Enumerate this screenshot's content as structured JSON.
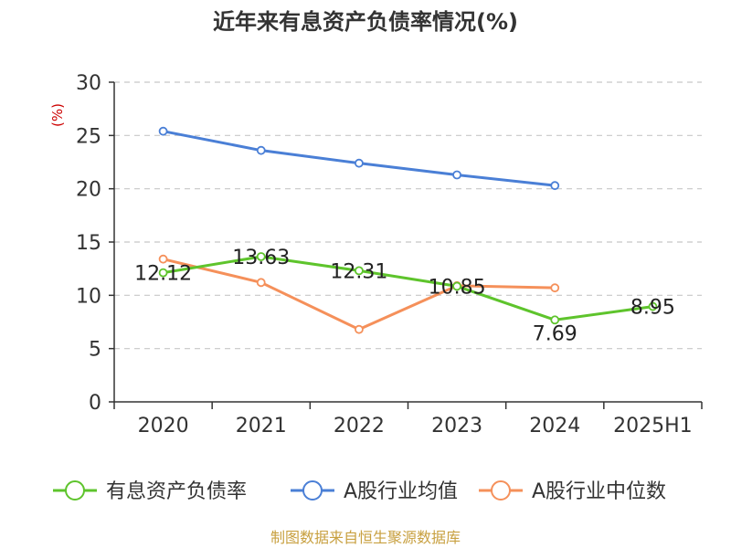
{
  "chart_data": {
    "type": "line",
    "title": "近年来有息资产负债率情况(%)",
    "ylabel": "(%)",
    "xlabel": "",
    "categories": [
      "2020",
      "2021",
      "2022",
      "2023",
      "2024",
      "2025H1"
    ],
    "ylim": [
      0,
      30
    ],
    "yticks": [
      0,
      5,
      10,
      15,
      20,
      25,
      30
    ],
    "grid": true,
    "legend_position": "bottom",
    "series": [
      {
        "name": "有息资产负债率",
        "values": [
          12.12,
          13.63,
          12.31,
          10.85,
          7.69,
          8.95
        ],
        "labels": [
          "12.12",
          "13.63",
          "12.31",
          "10.85",
          "7.69",
          "8.95"
        ],
        "color": "#5ec42c"
      },
      {
        "name": "A股行业均值",
        "values": [
          25.4,
          23.6,
          22.4,
          21.3,
          20.3,
          null
        ],
        "color": "#4a7fd6"
      },
      {
        "name": "A股行业中位数",
        "values": [
          13.4,
          11.2,
          6.8,
          10.9,
          10.7,
          null
        ],
        "color": "#f5905a"
      }
    ],
    "source": "制图数据来自恒生聚源数据库"
  },
  "colors": {
    "axis": "#333333",
    "grid": "#c8c8c8",
    "ylabel": "#cc0000",
    "source": "#c8a040"
  }
}
